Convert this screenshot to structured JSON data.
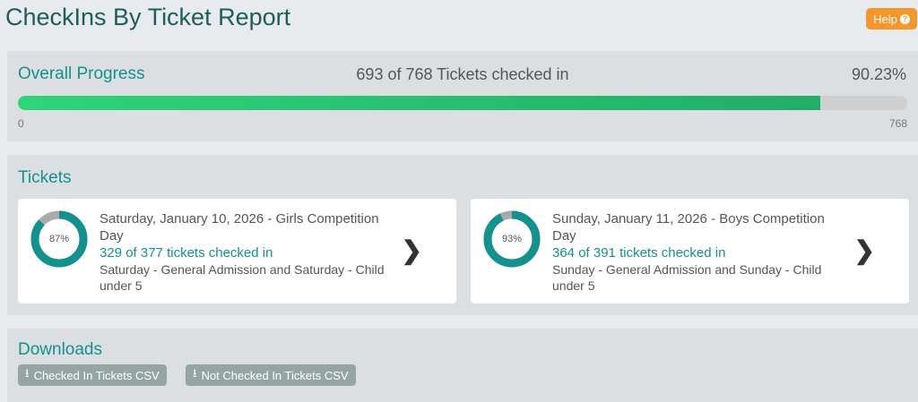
{
  "header": {
    "title": "CheckIns By Ticket Report",
    "help_label": "Help",
    "help_icon": "question-circle-icon"
  },
  "progress": {
    "title": "Overall Progress",
    "summary": "693 of 768 Tickets checked in",
    "percent_label": "90.23%",
    "value": 693,
    "max": 768,
    "min_label": "0",
    "max_label": "768",
    "fill_percent": 90.23
  },
  "tickets": {
    "title": "Tickets",
    "items": [
      {
        "percent": 87,
        "percent_label": "87%",
        "title": "Saturday, January 10, 2026 - Girls Competition Day",
        "count": "329 of 377 tickets checked in",
        "types": "Saturday - General Admission and Saturday - Child under 5"
      },
      {
        "percent": 93,
        "percent_label": "93%",
        "title": "Sunday, January 11, 2026 - Boys Competition Day",
        "count": "364 of 391 tickets checked in",
        "types": "Sunday - General Admission and Sunday - Child under 5"
      }
    ]
  },
  "downloads": {
    "title": "Downloads",
    "buttons": [
      {
        "label": "Checked In Tickets CSV",
        "icon": "download-icon"
      },
      {
        "label": "Not Checked In Tickets CSV",
        "icon": "download-icon"
      }
    ]
  },
  "colors": {
    "accent": "#13918f",
    "help": "#f5962a",
    "progress": "#2ed47a",
    "button": "#95a5a4"
  }
}
